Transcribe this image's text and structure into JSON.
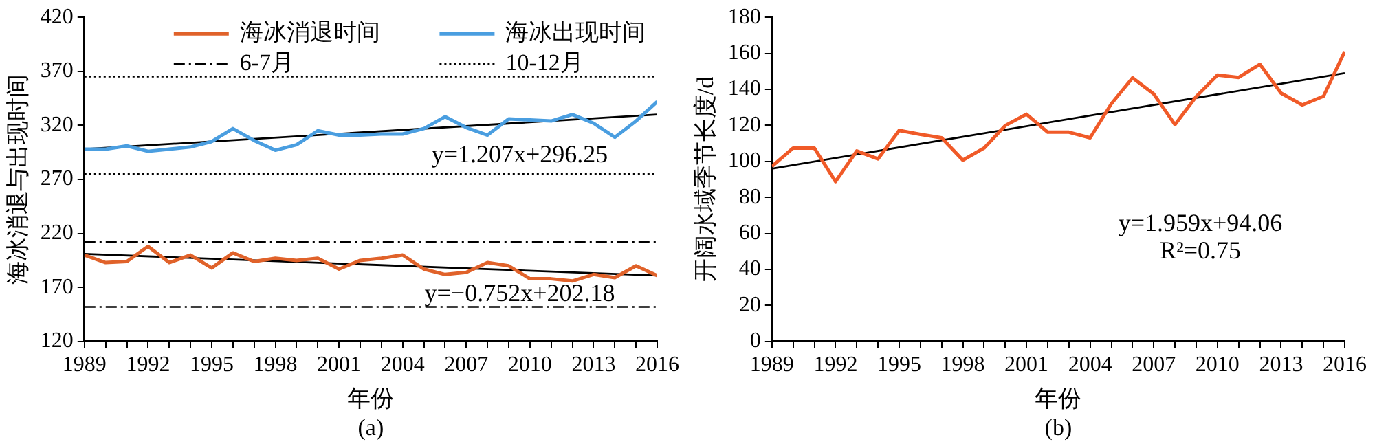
{
  "chart_data": [
    {
      "type": "line",
      "xlabel": "年份",
      "ylabel": "海冰消退与出现时间",
      "x": [
        1989,
        1990,
        1991,
        1992,
        1993,
        1994,
        1995,
        1996,
        1997,
        1998,
        1999,
        2000,
        2001,
        2002,
        2003,
        2004,
        2005,
        2006,
        2007,
        2008,
        2009,
        2010,
        2011,
        2012,
        2013,
        2014,
        2015,
        2016
      ],
      "series": [
        {
          "name": "海冰消退时间",
          "color": "#e0622a",
          "values": [
            200,
            193,
            194,
            208,
            193,
            200,
            188,
            202,
            194,
            197,
            195,
            197,
            187,
            195,
            197,
            200,
            187,
            182,
            184,
            193,
            190,
            178,
            178,
            176,
            182,
            179,
            190,
            181
          ]
        },
        {
          "name": "海冰出现时间",
          "color": "#4a9ee0",
          "values": [
            298,
            298,
            301,
            296,
            298,
            300,
            305,
            317,
            306,
            297,
            302,
            315,
            311,
            311,
            312,
            312,
            317,
            328,
            318,
            311,
            326,
            325,
            324,
            330,
            322,
            309,
            324,
            342
          ]
        },
        {
          "type": "line",
          "color": "#000000",
          "values": [
            298,
            null,
            null,
            null,
            null,
            null,
            null,
            null,
            null,
            null,
            null,
            null,
            null,
            null,
            null,
            null,
            null,
            null,
            null,
            null,
            null,
            null,
            null,
            null,
            null,
            null,
            null,
            330
          ]
        },
        {
          "type": "line",
          "color": "#000000",
          "values": [
            201,
            null,
            null,
            null,
            null,
            null,
            null,
            null,
            null,
            null,
            null,
            null,
            null,
            null,
            null,
            null,
            null,
            null,
            null,
            null,
            null,
            null,
            null,
            null,
            null,
            null,
            null,
            181
          ]
        }
      ],
      "ref_lines": [
        {
          "axis": "y",
          "value": 212,
          "label": "6-7月",
          "color": "#000000",
          "line_style": "dashdot"
        },
        {
          "axis": "y",
          "value": 152,
          "color": "#000000",
          "line_style": "dashdot"
        },
        {
          "axis": "y",
          "value": 365,
          "label": "10-12月",
          "color": "#000000",
          "line_style": "dotted"
        },
        {
          "axis": "y",
          "value": 275,
          "color": "#000000",
          "line_style": "dotted"
        }
      ],
      "xlim": [
        1989,
        2016
      ],
      "xticks": [
        1989,
        {
          "value": 1990,
          "label": null
        },
        {
          "value": 1991,
          "label": null
        },
        1992,
        {
          "value": 1993,
          "label": null
        },
        {
          "value": 1994,
          "label": null
        },
        1995,
        {
          "value": 1996,
          "label": null
        },
        {
          "value": 1997,
          "label": null
        },
        1998,
        {
          "value": 1999,
          "label": null
        },
        {
          "value": 2000,
          "label": null
        },
        2001,
        {
          "value": 2002,
          "label": null
        },
        {
          "value": 2003,
          "label": null
        },
        2004,
        {
          "value": 2005,
          "label": null
        },
        {
          "value": 2006,
          "label": null
        },
        2007,
        {
          "value": 2008,
          "label": null
        },
        {
          "value": 2009,
          "label": null
        },
        2010,
        {
          "value": 2011,
          "label": null
        },
        {
          "value": 2012,
          "label": null
        },
        2013,
        {
          "value": 2014,
          "label": null
        },
        {
          "value": 2015,
          "label": null
        },
        2016
      ],
      "ylim": [
        120,
        420
      ],
      "yticks": [
        120,
        170,
        220,
        270,
        320,
        370,
        420
      ],
      "legend": "top",
      "grid": false,
      "annotations": [
        "y=1.207x+296.25",
        "y=−0.752x+202.18",
        "(a)"
      ]
    },
    {
      "type": "line",
      "xlabel": "年份",
      "ylabel": "开阔水域季节长度/d",
      "x": [
        1989,
        1990,
        1991,
        1992,
        1993,
        1994,
        1995,
        1996,
        1997,
        1998,
        1999,
        2000,
        2001,
        2002,
        2003,
        2004,
        2005,
        2006,
        2007,
        2008,
        2009,
        2010,
        2011,
        2012,
        2013,
        2014,
        2015,
        2016
      ],
      "series": [
        {
          "color": "#f05a28",
          "values": [
            97.2,
            107.4,
            107.4,
            88.8,
            105.8,
            101.4,
            117.2,
            115,
            113.1,
            100.7,
            107.4,
            119.9,
            126.2,
            116.2,
            116.2,
            113.1,
            132,
            146.4,
            137.4,
            120.4,
            136,
            147.9,
            146.6,
            153.9,
            137.9,
            131.3,
            136.2,
            161
          ]
        },
        {
          "type": "line",
          "color": "#000000",
          "values": [
            96,
            null,
            null,
            null,
            null,
            null,
            null,
            null,
            null,
            null,
            null,
            null,
            null,
            null,
            null,
            null,
            null,
            null,
            null,
            null,
            null,
            null,
            null,
            null,
            null,
            null,
            null,
            149
          ]
        }
      ],
      "xlim": [
        1989,
        2016
      ],
      "xticks": [
        1989,
        {
          "value": 1990,
          "label": null
        },
        {
          "value": 1991,
          "label": null
        },
        1992,
        {
          "value": 1993,
          "label": null
        },
        {
          "value": 1994,
          "label": null
        },
        1995,
        {
          "value": 1996,
          "label": null
        },
        {
          "value": 1997,
          "label": null
        },
        1998,
        {
          "value": 1999,
          "label": null
        },
        {
          "value": 2000,
          "label": null
        },
        2001,
        {
          "value": 2002,
          "label": null
        },
        {
          "value": 2003,
          "label": null
        },
        2004,
        {
          "value": 2005,
          "label": null
        },
        {
          "value": 2006,
          "label": null
        },
        2007,
        {
          "value": 2008,
          "label": null
        },
        {
          "value": 2009,
          "label": null
        },
        2010,
        {
          "value": 2011,
          "label": null
        },
        {
          "value": 2012,
          "label": null
        },
        2013,
        {
          "value": 2014,
          "label": null
        },
        {
          "value": 2015,
          "label": null
        },
        2016
      ],
      "ylim": [
        0,
        180
      ],
      "yticks": [
        0,
        20,
        40,
        60,
        80,
        100,
        120,
        140,
        160,
        180
      ],
      "grid": false,
      "annotations": [
        "y=1.959x+94.06",
        "R²=0.75",
        "(b)"
      ]
    }
  ]
}
